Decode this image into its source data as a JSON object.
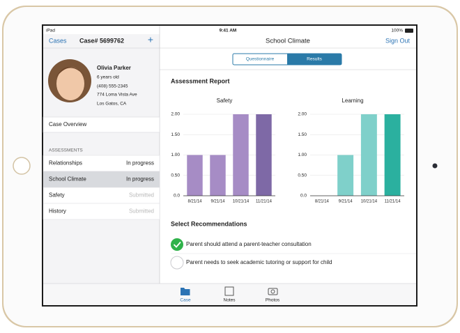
{
  "status_bar": {
    "carrier": "iPad",
    "time": "9:41 AM",
    "battery": "100%"
  },
  "sidebar": {
    "back": "Cases",
    "title": "Case# 5699762",
    "add": "+",
    "profile": {
      "name": "Olivia Parker",
      "age": "6 years old",
      "phone": "(408) 555-2345",
      "street": "774 Loma Vista Ave",
      "city": "Los Gatos, CA"
    },
    "overview": "Case Overview",
    "section": "ASSESSMENTS",
    "rows": [
      {
        "label": "Relationships",
        "status": "In progress"
      },
      {
        "label": "School Climate",
        "status": "In progress"
      },
      {
        "label": "Safety",
        "status": "Submitted"
      },
      {
        "label": "History",
        "status": "Submitted"
      }
    ]
  },
  "main": {
    "title": "School Climate",
    "sign_out": "Sign Out",
    "tabs": [
      "Questionnaire",
      "Results"
    ],
    "report_title": "Assessment Report",
    "recommendations_title": "Select Recommendations",
    "recommendations": [
      "Parent should attend a parent-teacher consultation",
      "Parent needs to seek academic tutoring or support for child"
    ]
  },
  "chart_data": [
    {
      "type": "bar",
      "title": "Safety",
      "categories": [
        "8/21/14",
        "9/21/14",
        "10/21/14",
        "11/21/14"
      ],
      "values": [
        1,
        1,
        2,
        2
      ],
      "colors": [
        "#a68cc5",
        "#a68cc5",
        "#a68cc5",
        "#7e69a6"
      ],
      "ylim": [
        0,
        2
      ],
      "yticks": [
        {
          "value": 0,
          "label": "0.0"
        },
        {
          "value": 0.5,
          "label": "0.50"
        },
        {
          "value": 1,
          "label": "1.00"
        },
        {
          "value": 1.5,
          "label": "1.50"
        },
        {
          "value": 2,
          "label": "2.00"
        }
      ],
      "grid": true
    },
    {
      "type": "bar",
      "title": "Learning",
      "categories": [
        "8/21/14",
        "9/21/14",
        "10/21/14",
        "11/21/14"
      ],
      "values": [
        0,
        1,
        2,
        2
      ],
      "colors": [
        "#7fd0ca",
        "#7fd0ca",
        "#7fd0ca",
        "#2bb09f"
      ],
      "ylim": [
        0,
        2
      ],
      "yticks": [
        {
          "value": 0,
          "label": "0.0"
        },
        {
          "value": 0.5,
          "label": "0.50"
        },
        {
          "value": 1,
          "label": "1.00"
        },
        {
          "value": 1.5,
          "label": "1.50"
        },
        {
          "value": 2,
          "label": "2.00"
        }
      ],
      "grid": true
    }
  ],
  "tab_bar": [
    "Case",
    "Notes",
    "Photos"
  ]
}
